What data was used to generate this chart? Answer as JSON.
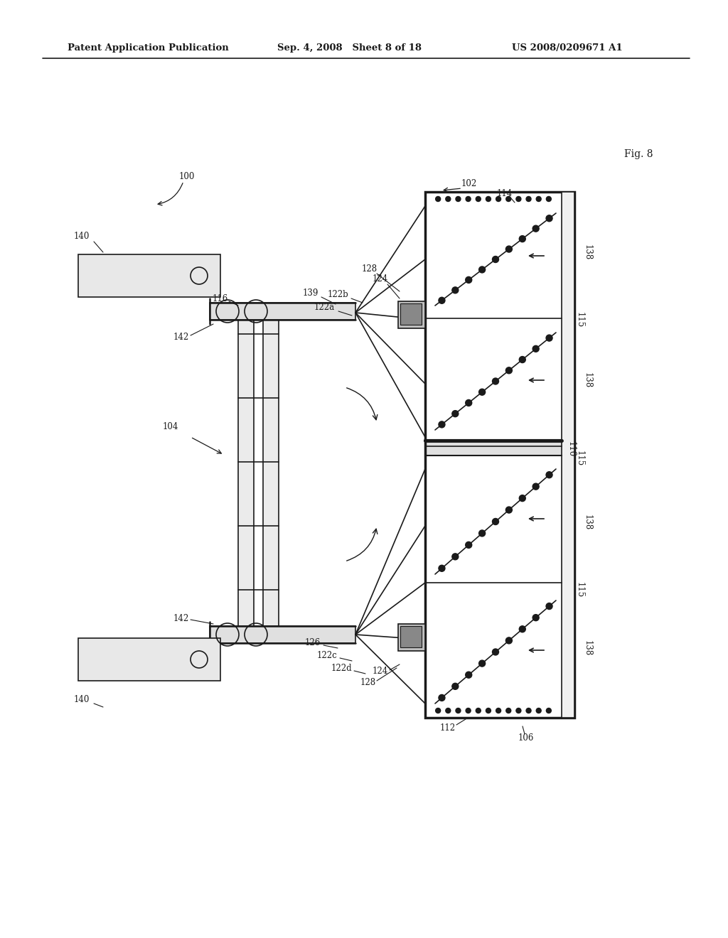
{
  "title_left": "Patent Application Publication",
  "title_center": "Sep. 4, 2008   Sheet 8 of 18",
  "title_right": "US 2008/0209671 A1",
  "background": "#ffffff",
  "line_color": "#1a1a1a",
  "fig8_label": "Fig. 8"
}
